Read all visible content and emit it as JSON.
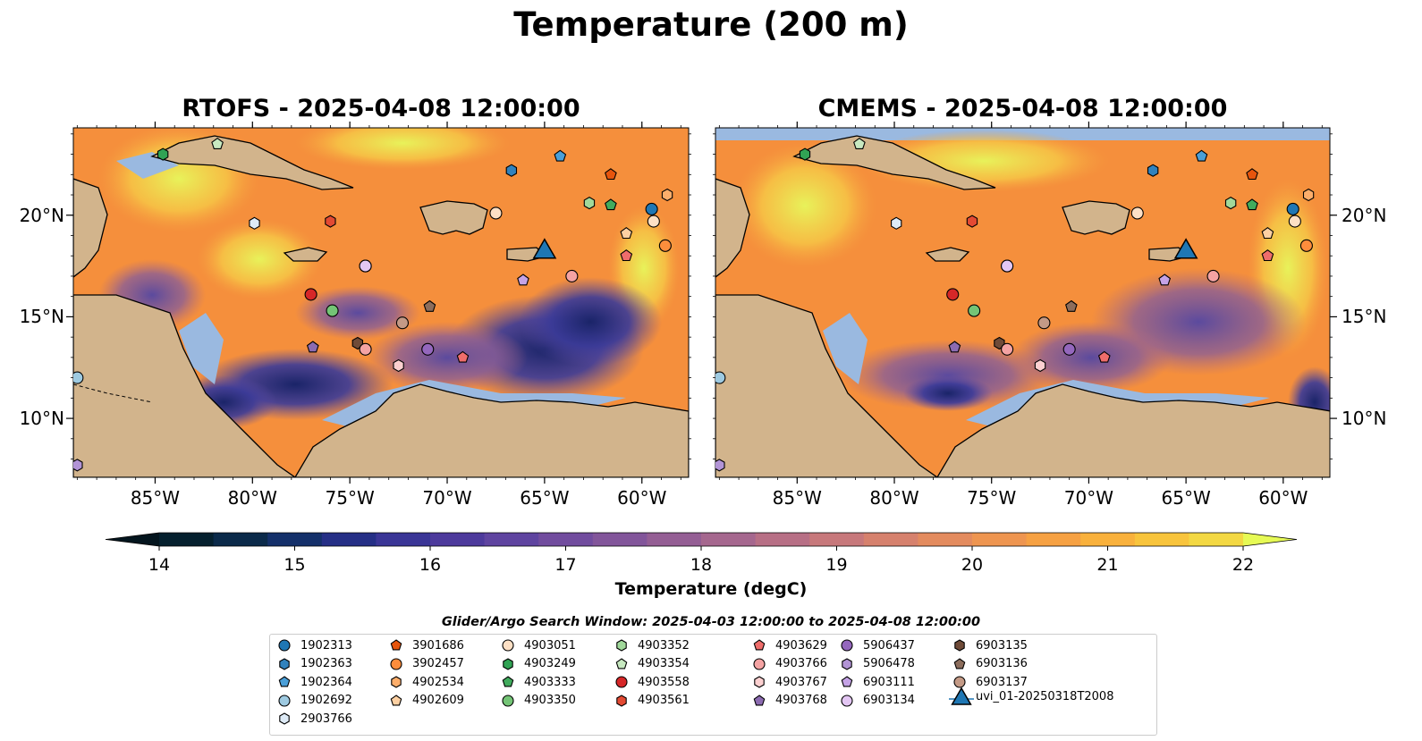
{
  "title": "Temperature (200 m)",
  "panels": [
    {
      "title": "RTOFS - 2025-04-08 12:00:00"
    },
    {
      "title": "CMEMS - 2025-04-08 12:00:00"
    }
  ],
  "axes": {
    "x_ticks": [
      "85°W",
      "80°W",
      "75°W",
      "70°W",
      "65°W",
      "60°W"
    ],
    "y_ticks": [
      "20°N",
      "15°N",
      "10°N"
    ],
    "lon_range": [
      -89.2,
      -57.6
    ],
    "lat_range": [
      7.1,
      24.3
    ]
  },
  "colorbar": {
    "label": "Temperature (degC)",
    "ticks": [
      "14",
      "15",
      "16",
      "17",
      "18",
      "19",
      "20",
      "21",
      "22"
    ],
    "range": [
      14,
      22
    ],
    "colormap": "thermal",
    "extend": "both"
  },
  "legend": {
    "title": "Glider/Argo Search Window: 2025-04-03 12:00:00 to 2025-04-08 12:00:00",
    "items": [
      {
        "id": "1902313",
        "marker": "circle",
        "color": "#1f77b4",
        "lon": -59.5,
        "lat": 20.3
      },
      {
        "id": "1902363",
        "marker": "hexagon",
        "color": "#3182bd",
        "lon": -66.7,
        "lat": 22.2
      },
      {
        "id": "1902364",
        "marker": "pentagon",
        "color": "#4a9fd8",
        "lon": -64.2,
        "lat": 22.9
      },
      {
        "id": "1902692",
        "marker": "circle",
        "color": "#9ecae1",
        "lon": -89.0,
        "lat": 12.0
      },
      {
        "id": "2903766",
        "marker": "hexagon",
        "color": "#deebf7",
        "lon": -79.9,
        "lat": 19.6
      },
      {
        "id": "3901686",
        "marker": "pentagon",
        "color": "#e6550d",
        "lon": -61.6,
        "lat": 22.0
      },
      {
        "id": "3902457",
        "marker": "circle",
        "color": "#fd8d3c",
        "lon": -58.8,
        "lat": 18.5
      },
      {
        "id": "4902534",
        "marker": "hexagon",
        "color": "#fdae6b",
        "lon": -58.7,
        "lat": 21.0
      },
      {
        "id": "4902609",
        "marker": "pentagon",
        "color": "#fdd0a2",
        "lon": -60.8,
        "lat": 19.1
      },
      {
        "id": "4903051",
        "marker": "circle",
        "color": "#fde0c5",
        "lon": -59.4,
        "lat": 19.7
      },
      {
        "id": "4903249",
        "marker": "hexagon",
        "color": "#31a354",
        "lon": -84.6,
        "lat": 23.0
      },
      {
        "id": "4903333",
        "marker": "pentagon",
        "color": "#41ab5d",
        "lon": -61.6,
        "lat": 20.5
      },
      {
        "id": "4903350",
        "marker": "circle",
        "color": "#74c476",
        "lon": -75.9,
        "lat": 15.3
      },
      {
        "id": "4903352",
        "marker": "hexagon",
        "color": "#a1d99b",
        "lon": -62.7,
        "lat": 20.6
      },
      {
        "id": "4903354",
        "marker": "pentagon",
        "color": "#c7e9c0",
        "lon": -81.8,
        "lat": 23.5
      },
      {
        "id": "4903558",
        "marker": "circle",
        "color": "#d62728",
        "lon": -77.0,
        "lat": 16.1
      },
      {
        "id": "4903561",
        "marker": "hexagon",
        "color": "#e34a33",
        "lon": -76.0,
        "lat": 19.7
      },
      {
        "id": "4903629",
        "marker": "pentagon",
        "color": "#ef6d6b",
        "lon": -60.8,
        "lat": 18.0
      },
      {
        "id": "4903766",
        "marker": "circle",
        "color": "#f4a3a3",
        "lon": -63.6,
        "lat": 17.0
      },
      {
        "id": "4903767",
        "marker": "hexagon",
        "color": "#fcd0d0",
        "lon": -72.5,
        "lat": 12.6
      },
      {
        "id": "4903768",
        "marker": "pentagon",
        "color": "#8c6bb1",
        "lon": -76.9,
        "lat": 13.5
      },
      {
        "id": "5906437",
        "marker": "circle",
        "color": "#9467bd",
        "lon": -71.0,
        "lat": 13.4
      },
      {
        "id": "5906478",
        "marker": "hexagon",
        "color": "#b294d6",
        "lon": -89.0,
        "lat": 7.7
      },
      {
        "id": "6903111",
        "marker": "pentagon",
        "color": "#c5a3e6",
        "lon": -66.1,
        "lat": 16.8
      },
      {
        "id": "6903134",
        "marker": "circle",
        "color": "#e3c6f3",
        "lon": -74.2,
        "lat": 17.5
      },
      {
        "id": "6903135",
        "marker": "hexagon",
        "color": "#6f4b38",
        "lon": -74.6,
        "lat": 13.7
      },
      {
        "id": "6903136",
        "marker": "pentagon",
        "color": "#8c6d5c",
        "lon": -70.9,
        "lat": 15.5
      },
      {
        "id": "6903137",
        "marker": "circle",
        "color": "#c49a86",
        "lon": -72.3,
        "lat": 14.7
      },
      {
        "id": "6903135b",
        "marker": "none",
        "color": "#6f4b38",
        "lon": -74.6,
        "lat": 13.7,
        "hidden": true
      },
      {
        "id": "uvi_01-20250318T2008",
        "marker": "triangle",
        "color": "#1f77b4",
        "lon": -65.0,
        "lat": 18.2
      }
    ],
    "extra_points": [
      {
        "marker": "circle",
        "color": "#f4a3a3",
        "lon": -74.2,
        "lat": 13.4
      },
      {
        "marker": "circle",
        "color": "#e3c6f3",
        "lon": -74.2,
        "lat": 17.5
      },
      {
        "marker": "pentagon",
        "color": "#ef6d6b",
        "lon": -69.2,
        "lat": 13.0
      },
      {
        "marker": "circle",
        "color": "#fde0c5",
        "lon": -67.5,
        "lat": 20.1
      }
    ]
  },
  "colors": {
    "land": "#d2b48c",
    "shelf_water": "#9ab9e0"
  }
}
